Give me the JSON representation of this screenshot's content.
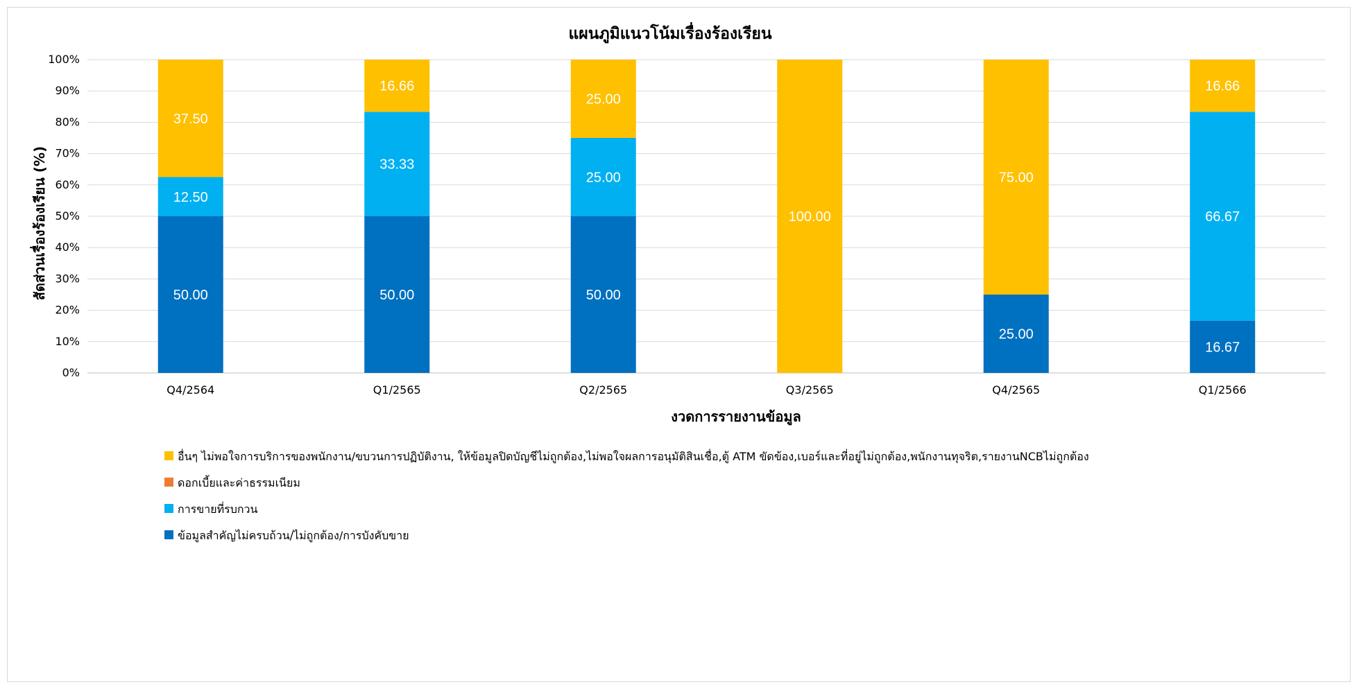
{
  "chart_data": {
    "type": "bar",
    "stacked": true,
    "title": "แผนภูมิแนวโน้มเรื่องร้องเรียน",
    "xlabel": "งวดการรายงานข้อมูล",
    "ylabel": "สัดส่วนเรื่องร้องเรียน (%)",
    "ylim": [
      0,
      100
    ],
    "yticks": [
      "0%",
      "10%",
      "20%",
      "30%",
      "40%",
      "50%",
      "60%",
      "70%",
      "80%",
      "90%",
      "100%"
    ],
    "grid": true,
    "legend_position": "bottom",
    "categories": [
      "Q4/2564",
      "Q1/2565",
      "Q2/2565",
      "Q3/2565",
      "Q4/2565",
      "Q1/2566"
    ],
    "series": [
      {
        "name": "ข้อมูลสำคัญไม่ครบถ้วน/ไม่ถูกต้อง/การบังคับขาย",
        "color": "#0070C0",
        "values": [
          50.0,
          50.0,
          50.0,
          0,
          25.0,
          16.67
        ],
        "labels": [
          "50.00",
          "50.00",
          "50.00",
          "",
          "25.00",
          "16.67"
        ]
      },
      {
        "name": "การขายที่รบกวน",
        "color": "#00B0F0",
        "values": [
          12.5,
          33.33,
          25.0,
          0,
          0,
          66.67
        ],
        "labels": [
          "12.50",
          "33.33",
          "25.00",
          "",
          "",
          "66.67"
        ]
      },
      {
        "name": "ดอกเบี้ยและค่าธรรมเนียม",
        "color": "#ED7D31",
        "values": [
          0,
          0,
          0,
          0,
          0,
          0
        ],
        "labels": [
          "",
          "",
          "",
          "",
          "",
          ""
        ]
      },
      {
        "name": "อื่นๆ ไม่พอใจการบริการของพนักงาน/ขบวนการปฏิบัติงาน, ให้ข้อมูลปิดบัญชีไม่ถูกต้อง,ไม่พอใจผลการอนุมัติสินเชื่อ,ตู้ ATM ขัดข้อง,เบอร์และที่อยู่ไม่ถูกต้อง,พนักงานทุจริต,รายงานNCBไม่ถูกต้อง",
        "color": "#FFC000",
        "values": [
          37.5,
          16.66,
          25.0,
          100.0,
          75.0,
          16.66
        ],
        "labels": [
          "37.50",
          "16.66",
          "25.00",
          "100.00",
          "75.00",
          "16.66"
        ]
      }
    ],
    "legend_order": [
      3,
      2,
      1,
      0
    ]
  }
}
